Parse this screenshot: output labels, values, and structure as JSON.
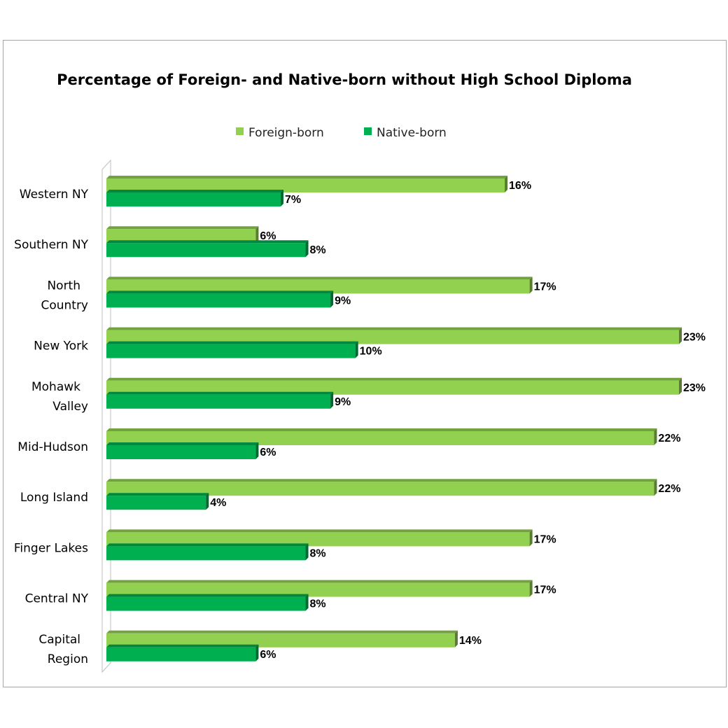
{
  "chart_data": {
    "type": "bar",
    "orientation": "horizontal",
    "title": "Percentage of Foreign- and Native-born without High School Diploma",
    "legend_position": "top",
    "categories": [
      [
        "Western NY"
      ],
      [
        "Southern NY"
      ],
      [
        "North",
        "Country"
      ],
      [
        "New York"
      ],
      [
        "Mohawk",
        "Valley"
      ],
      [
        "Mid-Hudson"
      ],
      [
        "Long Island"
      ],
      [
        "Finger Lakes"
      ],
      [
        "Central NY"
      ],
      [
        "Capital",
        "Region"
      ]
    ],
    "xlim": [
      0,
      23
    ],
    "series": [
      {
        "name": "Foreign-born",
        "color": "#92d050",
        "values": [
          16,
          6,
          17,
          23,
          23,
          22,
          22,
          17,
          17,
          14
        ],
        "labels": [
          "16%",
          "6%",
          "17%",
          "23%",
          "23%",
          "22%",
          "22%",
          "17%",
          "17%",
          "14%"
        ]
      },
      {
        "name": "Native-born",
        "color": "#00b050",
        "values": [
          7,
          8,
          9,
          10,
          9,
          6,
          4,
          8,
          8,
          6
        ],
        "labels": [
          "7%",
          "8%",
          "9%",
          "10%",
          "9%",
          "6%",
          "4%",
          "8%",
          "8%",
          "6%"
        ]
      }
    ]
  }
}
